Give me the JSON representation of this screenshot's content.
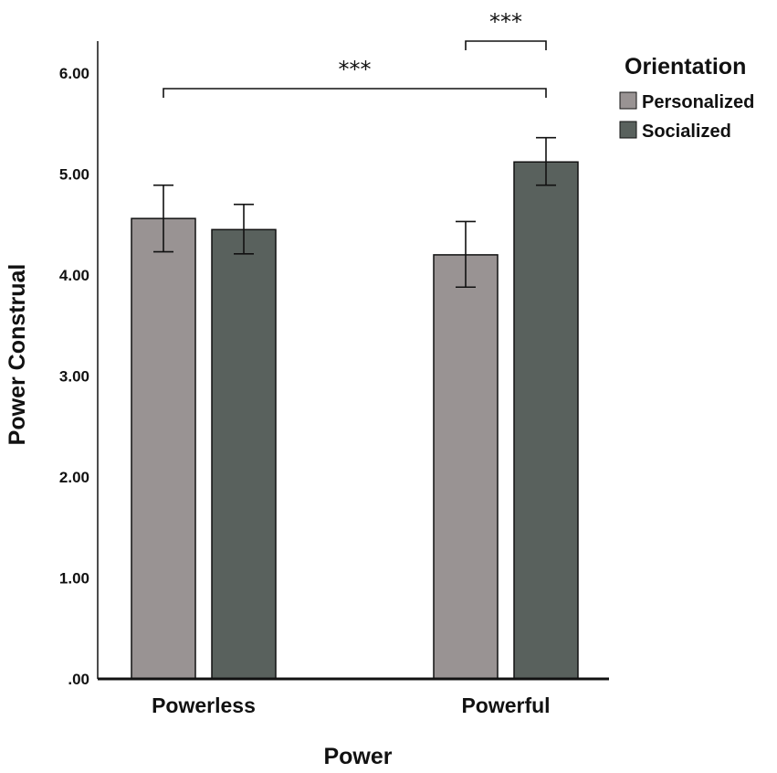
{
  "chart_data": {
    "type": "bar",
    "title": "",
    "xlabel": "Power",
    "ylabel": "Power Construal",
    "ylim": [
      0,
      6.0
    ],
    "yticks": [
      ".00",
      "1.00",
      "2.00",
      "3.00",
      "4.00",
      "5.00",
      "6.00"
    ],
    "categories": [
      "Powerless",
      "Powerful"
    ],
    "legend": {
      "title": "Orientation",
      "position": "top-right"
    },
    "series": [
      {
        "name": "Personalized",
        "color": "#999393",
        "values": [
          4.56,
          4.2
        ],
        "error_low": [
          4.23,
          3.88
        ],
        "error_high": [
          4.89,
          4.53
        ]
      },
      {
        "name": "Socialized",
        "color": "#59615d",
        "values": [
          4.45,
          5.12
        ],
        "error_low": [
          4.21,
          4.89
        ],
        "error_high": [
          4.7,
          5.36
        ]
      }
    ],
    "annotations": [
      {
        "label": "***",
        "from": "Powerful.Personalized",
        "to": "Powerful.Socialized"
      },
      {
        "label": "***",
        "from": "Powerless.Personalized",
        "to": "Powerful.Socialized"
      }
    ]
  }
}
